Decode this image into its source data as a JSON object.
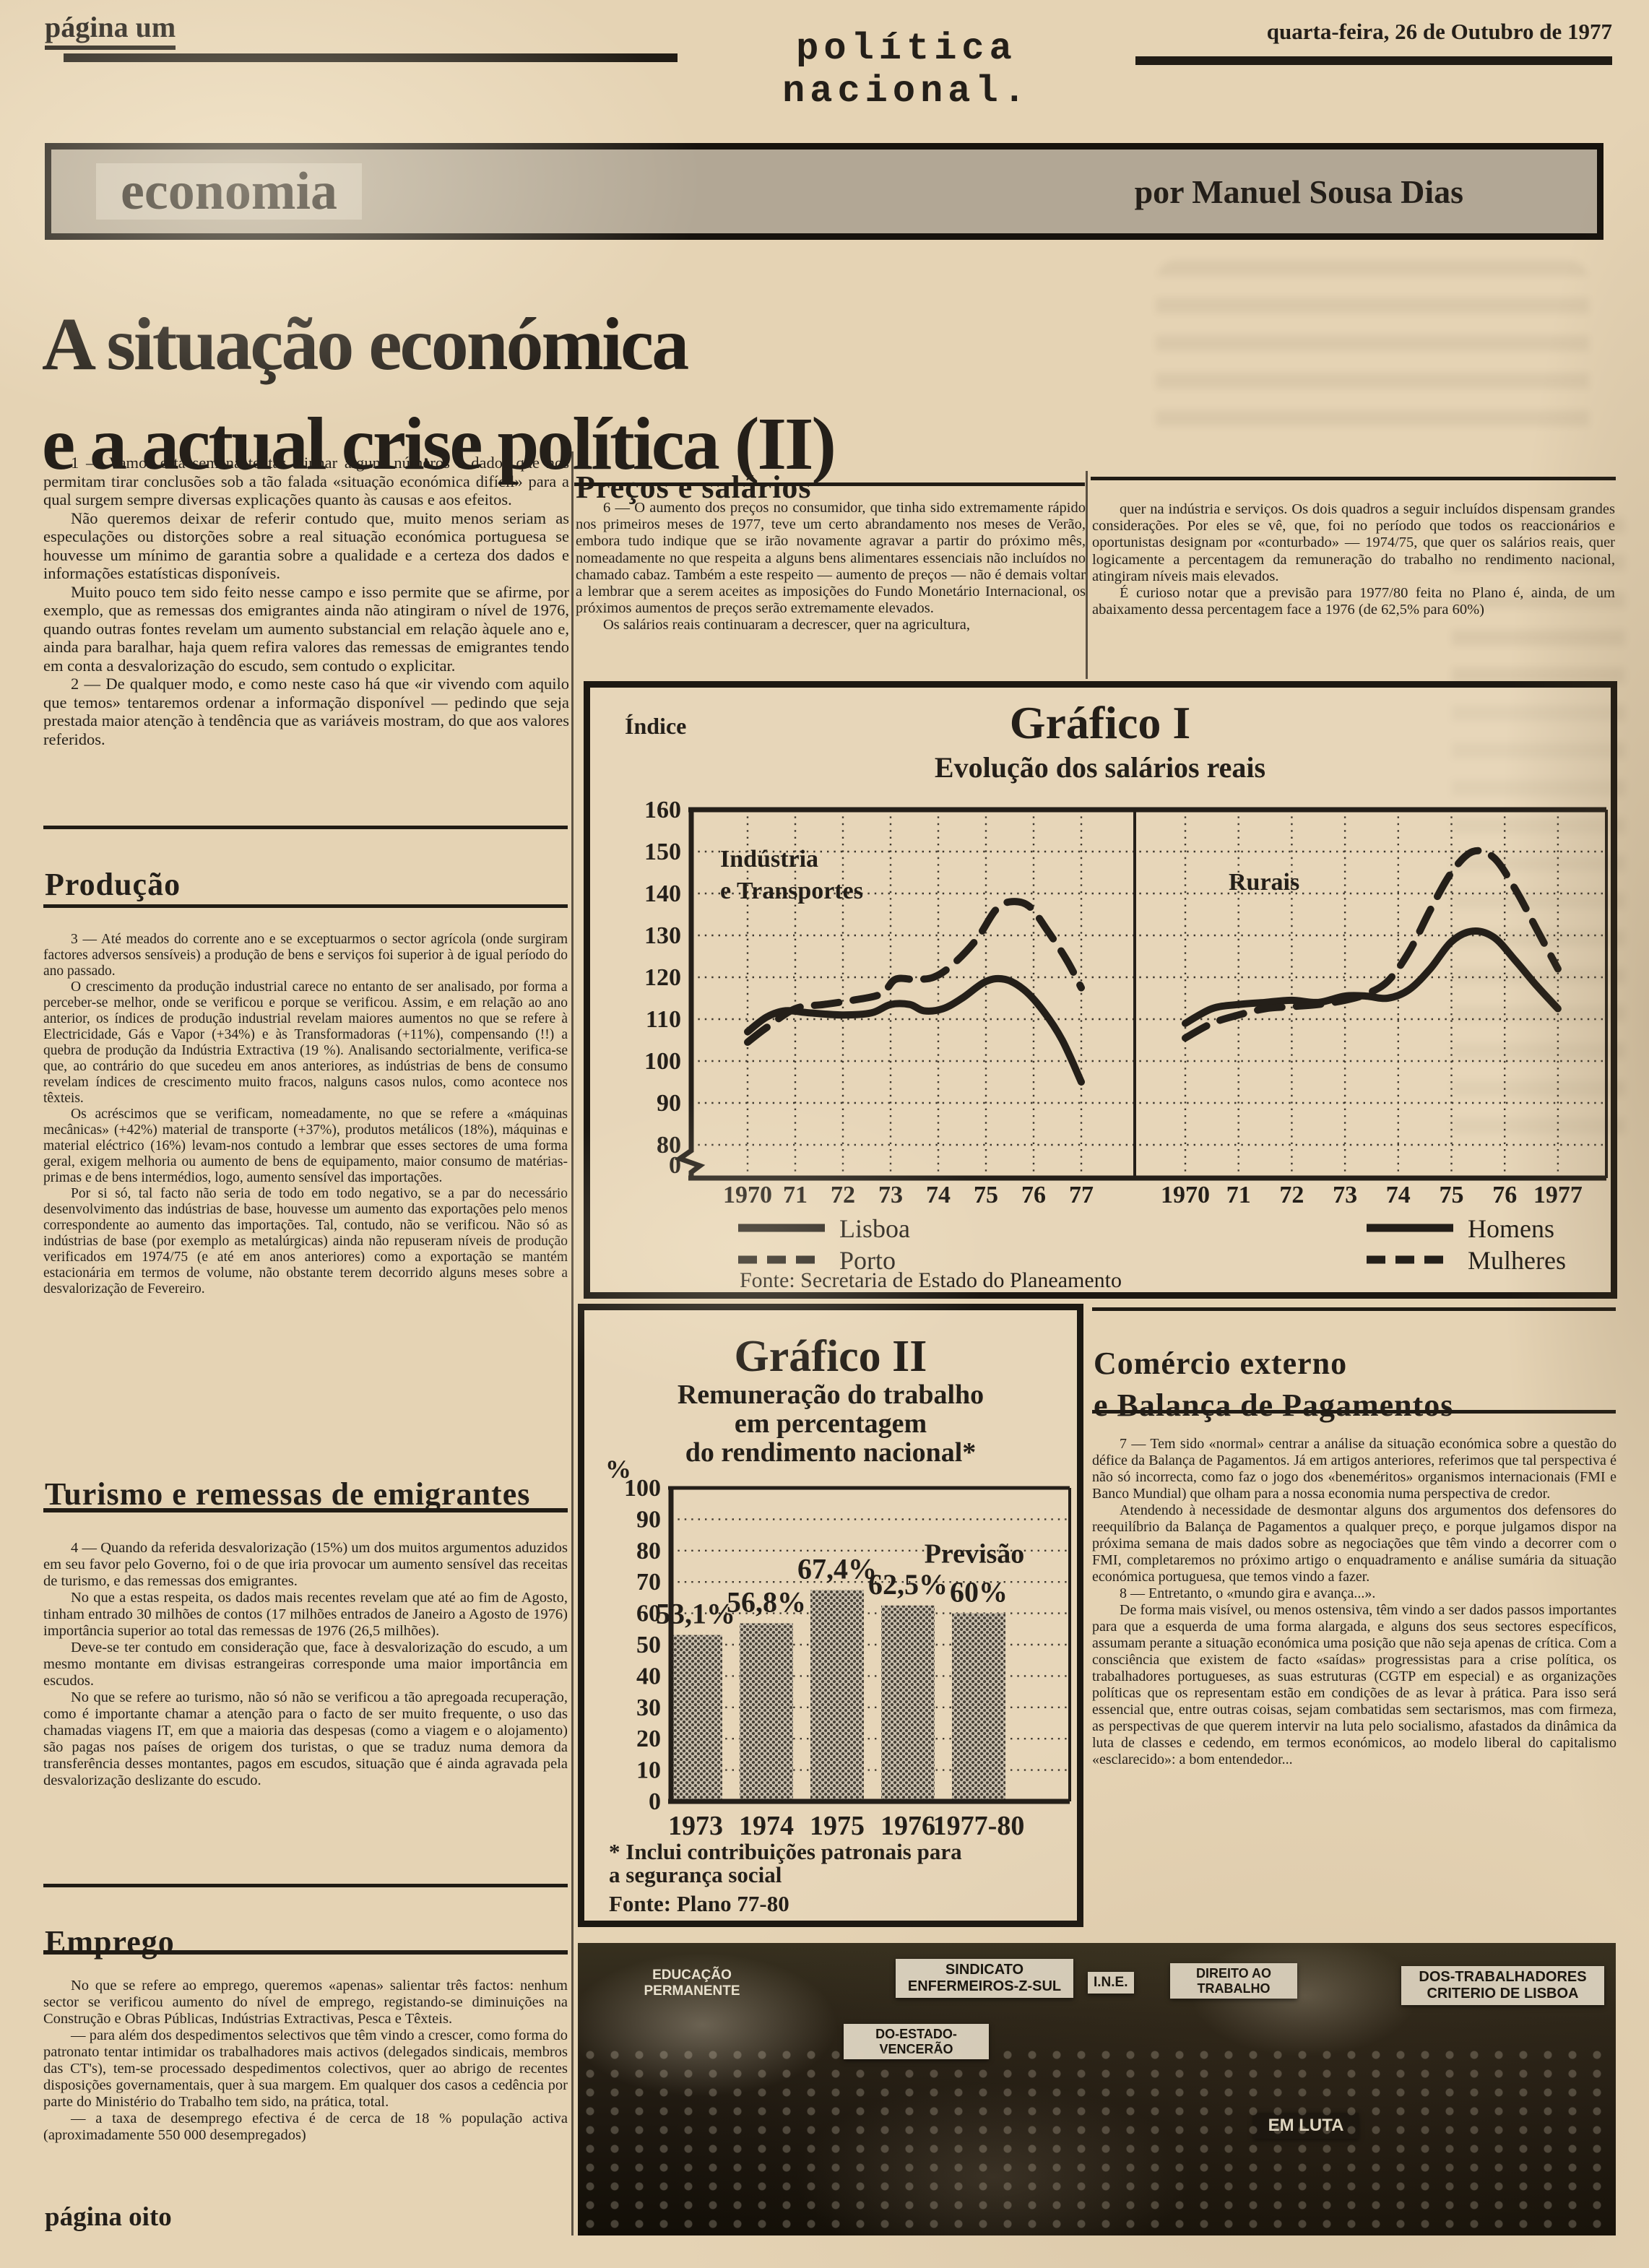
{
  "masthead": {
    "page_label": "página um",
    "section_title": "política nacional.",
    "date": "quarta-feira, 26 de Outubro de 1977"
  },
  "kicker": {
    "label": "economia",
    "byline": "por Manuel Sousa Dias"
  },
  "headline": {
    "line1": "A situação económica",
    "line2": "e a actual crise política (II)"
  },
  "intro_paragraphs": [
    "1 — Vamos esta semana tentar alinhar alguns números e dados que nos permitam tirar conclusões sob a tão falada «situação económica difícil» para a qual surgem sempre diversas explicações quanto às causas e aos efeitos.",
    "Não queremos deixar de referir contudo que, muito menos seriam as especulações ou distorções sobre a real situação económica portuguesa se houvesse um mínimo de garantia sobre a qualidade e a certeza dos dados e informações estatísticas disponíveis.",
    "Muito pouco tem sido feito nesse campo e isso permite que se afirme, por exemplo, que as remessas dos emigrantes ainda não atingiram o nível de 1976, quando outras fontes revelam um aumento substancial em relação àquele ano e, ainda para baralhar, haja quem refira valores das remessas de emigrantes tendo em conta a desvalorização do escudo, sem contudo o explicitar.",
    "2 — De qualquer modo, e como neste caso há que «ir vivendo com aquilo que temos» tentaremos ordenar a informação disponível — pedindo que seja prestada maior atenção à tendência que as variáveis mostram, do que aos valores referidos."
  ],
  "producao": {
    "title": "Produção",
    "paragraphs": [
      "3 — Até meados do corrente ano e se exceptuarmos o sector agrícola (onde surgiram factores adversos sensíveis) a produção de bens e serviços foi superior à de igual período do ano passado.",
      "O crescimento da produção industrial carece no entanto de ser analisado, por forma a perceber-se melhor, onde se verificou e porque se verificou. Assim, e em relação ao ano anterior, os índices de produção industrial revelam maiores aumentos no que se refere à Electricidade, Gás e Vapor (+34%) e às Transformadoras (+11%), compensando (!!) a quebra de produção da Indústria Extractiva (19 %). Analisando sectorialmente, verifica-se que, ao contrário do que sucedeu em anos anteriores, as indústrias de bens de consumo revelam índices de crescimento muito fracos, nalguns casos nulos, como acontece nos têxteis.",
      "Os acréscimos que se verificam, nomeadamente, no que se refere a «máquinas mecânicas» (+42%) material de transporte (+37%), produtos metálicos (18%), máquinas e material eléctrico (16%) levam-nos contudo a lembrar que esses sectores de uma forma geral, exigem melhoria ou aumento de bens de equipamento, maior consumo de matérias-primas e de bens intermédios, logo, aumento sensível das importações.",
      "Por si só, tal facto não seria de todo em todo negativo, se a par do necessário desenvolvimento das indústrias de base, houvesse um aumento das exportações pelo menos correspondente ao aumento das importações. Tal, contudo, não se verificou. Não só as indústrias de base (por exemplo as metalúrgicas) ainda não repuseram níveis de produção verificados em 1974/75 (e até em anos anteriores) como a exportação se mantém estacionária em termos de volume, não obstante terem decorrido alguns meses sobre a desvalorização de Fevereiro."
    ]
  },
  "turismo": {
    "title": "Turismo e remessas de emigrantes",
    "paragraphs": [
      "4 — Quando da referida desvalorização (15%) um dos muitos argumentos aduzidos em seu favor pelo Governo, foi o de que iria provocar um aumento sensível das receitas de turismo, e das remessas dos emigrantes.",
      "No que a estas respeita, os dados mais recentes revelam que até ao fim de Agosto, tinham entrado 30 milhões de contos (17 milhões entrados de Janeiro a Agosto de 1976) importância superior ao total das remessas de 1976 (26,5 milhões).",
      "Deve-se ter contudo em consideração que, face à desvalorização do escudo, a um mesmo montante em divisas estrangeiras corresponde uma maior importância em escudos.",
      "No que se refere ao turismo, não só não se verificou a tão apregoada recuperação, como é importante chamar a atenção para o facto de ser muito frequente, o uso das chamadas viagens IT, em que a maioria das despesas (como a viagem e o alojamento) são pagas nos países de origem dos turistas, o que se traduz numa demora da transferência desses montantes, pagos em escudos, situação que é ainda agravada pela desvalorização deslizante do escudo."
    ]
  },
  "emprego": {
    "title": "Emprego",
    "paragraphs": [
      "No que se refere ao emprego, queremos «apenas» salientar três factos: nenhum sector se verificou aumento do nível de emprego, registando-se diminuições na Construção e Obras Públicas, Indústrias Extractivas, Pesca e Têxteis.",
      "— para além dos despedimentos selectivos que têm vindo a crescer, como forma do patronato tentar intimidar os trabalhadores mais activos (delegados sindicais, membros das CT's), tem-se processado despedimentos colectivos, quer ao abrigo de recentes disposições governamentais, quer à sua margem. Em qualquer dos casos a cedência por parte do Ministério do Trabalho tem sido, na prática, total.",
      "— a taxa de desemprego efectiva é de cerca de 18 % população activa (aproximadamente 550 000 desempregados)"
    ],
    "footer": "página oito"
  },
  "precos": {
    "title": "Preços e salários",
    "paragraphs": [
      "6 — O aumento dos preços no consumidor, que tinha sido extremamente rápido nos primeiros meses de 1977, teve um certo abrandamento nos meses de Verão, embora tudo indique que se irão novamente agravar a partir do próximo mês, nomeadamente no que respeita a alguns bens alimentares essenciais não incluídos no chamado cabaz. Também a este respeito — aumento de preços — não é demais voltar a lembrar que a serem aceites as imposições do Fundo Monetário Internacional, os próximos aumentos de preços serão extremamente elevados.",
      "Os salários reais continuaram a decrescer, quer na agricultura,"
    ]
  },
  "continuation": {
    "paragraphs": [
      "quer na indústria e serviços. Os dois quadros a seguir incluídos dispensam grandes considerações. Por eles se vê, que, foi no período que todos os reaccionários e oportunistas designam por «conturbado» — 1974/75, que quer os salários reais, quer logicamente a percentagem da remuneração do trabalho no rendimento nacional, atingiram níveis mais elevados.",
      "É curioso notar que a previsão para 1977/80 feita no Plano é, ainda, de um abaixamento dessa percentagem face a 1976 (de 62,5% para 60%)"
    ]
  },
  "comercio": {
    "title_line1": "Comércio externo",
    "title_line2": "e Balança de Pagamentos",
    "paragraphs": [
      "7 — Tem sido «normal» centrar a análise da situação económica sobre a questão do défice da Balança de Pagamentos. Já em artigos anteriores, referimos que tal perspectiva é não só incorrecta, como faz o jogo dos «beneméritos» organismos internacionais (FMI e Banco Mundial) que olham para a nossa economia numa perspectiva de credor.",
      "Atendendo à necessidade de desmontar alguns dos argumentos dos defensores do reequilíbrio da Balança de Pagamentos a qualquer preço, e porque julgamos dispor na próxima semana de mais dados sobre as negociações que têm vindo a decorrer com o FMI, completaremos no próximo artigo o enquadramento e análise sumária da situação económica portuguesa, que temos vindo a fazer.",
      "8 — Entretanto, o «mundo gira e avança...».",
      "De forma mais visível, ou menos ostensiva, têm vindo a ser dados passos importantes para que a esquerda de uma forma alargada, e alguns dos seus sectores específicos, assumam perante a situação económica uma posição que não seja apenas de crítica. Com a consciência que existem de facto «saídas» progressistas para a crise política, os trabalhadores portugueses, as suas estruturas (CGTP em especial) e as organizações políticas que os representam estão em condições de as levar à prática. Para isso será essencial que, entre outras coisas, sejam combatidas sem sectarismos, mas com firmeza, as perspectivas de que querem intervir na luta pelo socialismo, afastados da dinâmica da luta de classes e cedendo, em termos económicos, ao modelo liberal do capitalismo «esclarecido»: a bom entendedor..."
    ]
  },
  "photo": {
    "banners": [
      "SINDICATO\nENFERMEIROS-Z-SUL",
      "I.N.E.",
      "EDUCAÇÃO\nPERMANENTE",
      "DO-ESTADO-\nVENCERÃO",
      "DIREITO AO\nTRABALHO",
      "DOS-TRABALHADORES\nCRITERIO DE LISBOA",
      "EM LUTA"
    ]
  },
  "chart_data": [
    {
      "type": "line",
      "title": "Gráfico I",
      "subtitle": "Evolução dos salários reais",
      "ylabel": "Índice",
      "yticks": [
        160,
        150,
        140,
        130,
        120,
        110,
        100,
        90,
        80
      ],
      "y_break_tick": "0",
      "ylim": [
        80,
        160
      ],
      "grid": true,
      "legend_position": "bottom",
      "source": "Fonte: Secretaria de Estado do Planeamento",
      "panels": [
        {
          "label_lines": [
            "Indústria",
            "e Transportes"
          ],
          "xticks": [
            "1970",
            "71",
            "72",
            "73",
            "74",
            "75",
            "76",
            "77"
          ],
          "series": [
            {
              "name": "Lisboa",
              "style": "solid",
              "points": [
                [
                  1970,
                  107
                ],
                [
                  1970.4,
                  110.5
                ],
                [
                  1970.8,
                  112
                ],
                [
                  1971.3,
                  111.5
                ],
                [
                  1972,
                  111
                ],
                [
                  1972.6,
                  111.5
                ],
                [
                  1973,
                  113.5
                ],
                [
                  1973.4,
                  113.5
                ],
                [
                  1973.7,
                  112
                ],
                [
                  1974.1,
                  112.5
                ],
                [
                  1974.5,
                  115
                ],
                [
                  1975,
                  119
                ],
                [
                  1975.4,
                  119.5
                ],
                [
                  1975.8,
                  117
                ],
                [
                  1976.2,
                  112
                ],
                [
                  1976.6,
                  105
                ],
                [
                  1977,
                  95
                ]
              ]
            },
            {
              "name": "Porto",
              "style": "dashed",
              "points": [
                [
                  1970,
                  104.5
                ],
                [
                  1970.4,
                  108
                ],
                [
                  1971,
                  112.5
                ],
                [
                  1971.6,
                  113.5
                ],
                [
                  1972.2,
                  114.5
                ],
                [
                  1972.8,
                  116
                ],
                [
                  1973.1,
                  119.5
                ],
                [
                  1973.5,
                  119.5
                ],
                [
                  1973.9,
                  120
                ],
                [
                  1974.3,
                  123
                ],
                [
                  1974.8,
                  129
                ],
                [
                  1975.2,
                  136
                ],
                [
                  1975.5,
                  138
                ],
                [
                  1975.9,
                  137
                ],
                [
                  1976.3,
                  131
                ],
                [
                  1976.7,
                  124
                ],
                [
                  1977,
                  117.5
                ]
              ]
            }
          ]
        },
        {
          "label_lines": [
            "Rurais"
          ],
          "xticks": [
            "1970",
            "71",
            "72",
            "73",
            "74",
            "75",
            "76",
            "1977"
          ],
          "series": [
            {
              "name": "Homens",
              "style": "solid",
              "points": [
                [
                  1970,
                  109
                ],
                [
                  1970.5,
                  112.5
                ],
                [
                  1971,
                  113.5
                ],
                [
                  1971.5,
                  114
                ],
                [
                  1972,
                  114.5
                ],
                [
                  1972.5,
                  114
                ],
                [
                  1973,
                  115.5
                ],
                [
                  1973.4,
                  115.5
                ],
                [
                  1973.8,
                  115
                ],
                [
                  1974.2,
                  117
                ],
                [
                  1974.6,
                  122
                ],
                [
                  1975,
                  128.5
                ],
                [
                  1975.4,
                  131
                ],
                [
                  1975.8,
                  129.5
                ],
                [
                  1976.2,
                  124
                ],
                [
                  1976.6,
                  118
                ],
                [
                  1977,
                  112.5
                ]
              ]
            },
            {
              "name": "Mulheres",
              "style": "dashed",
              "points": [
                [
                  1970,
                  105.5
                ],
                [
                  1970.5,
                  109
                ],
                [
                  1971,
                  111
                ],
                [
                  1971.5,
                  112.5
                ],
                [
                  1972,
                  113
                ],
                [
                  1972.5,
                  113.5
                ],
                [
                  1973,
                  114.5
                ],
                [
                  1973.4,
                  116
                ],
                [
                  1973.8,
                  119
                ],
                [
                  1974.2,
                  126
                ],
                [
                  1974.6,
                  136
                ],
                [
                  1975,
                  145
                ],
                [
                  1975.4,
                  150
                ],
                [
                  1975.8,
                  148.5
                ],
                [
                  1976.2,
                  141
                ],
                [
                  1976.6,
                  131.5
                ],
                [
                  1977,
                  122
                ]
              ]
            }
          ]
        }
      ]
    },
    {
      "type": "bar",
      "title": "Gráfico II",
      "subtitle_lines": [
        "Remuneração do trabalho",
        "em percentagem",
        "do rendimento nacional*"
      ],
      "ylabel": "%",
      "categories": [
        "1973",
        "1974",
        "1975",
        "1976",
        "1977-80"
      ],
      "values": [
        53.1,
        56.8,
        67.4,
        62.5,
        60
      ],
      "value_labels": [
        "53,1%",
        "56,8%",
        "67,4%",
        "62,5%",
        "60%"
      ],
      "annotation": "Previsão",
      "ylim": [
        0,
        100
      ],
      "yticks": [
        100,
        90,
        80,
        70,
        60,
        50,
        40,
        30,
        20,
        10,
        0
      ],
      "grid": true,
      "footnotes": [
        "* Inclui contribuições patronais para",
        "a segurança social"
      ],
      "source": "Fonte: Plano 77-80"
    }
  ]
}
